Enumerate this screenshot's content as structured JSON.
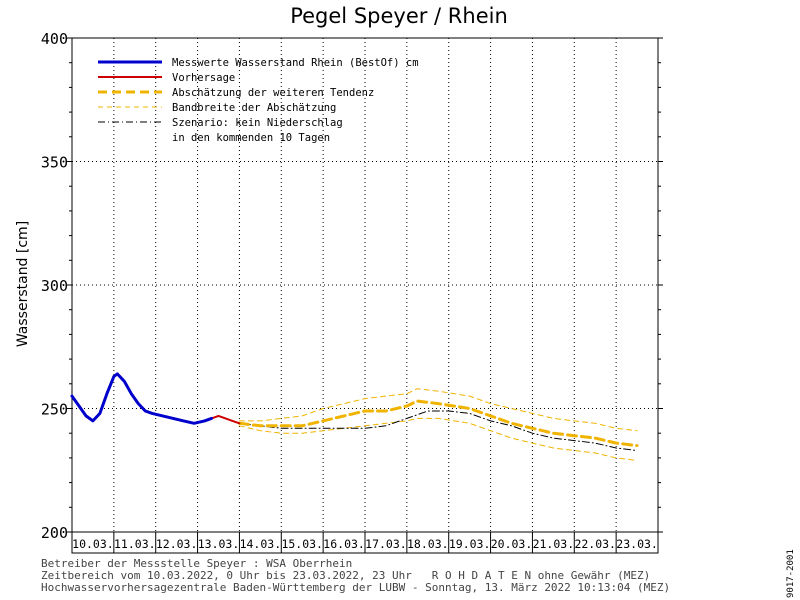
{
  "chart_data": {
    "type": "line",
    "title": "Pegel Speyer / Rhein",
    "ylabel": "Wasserstand [cm]",
    "ylim": [
      200,
      400
    ],
    "yticks": [
      200,
      250,
      300,
      350,
      400
    ],
    "xlim": [
      "2022-03-10T00:00",
      "2022-03-24T00:00"
    ],
    "xtick_labels": [
      "10.03.",
      "11.03.",
      "12.03.",
      "13.03.",
      "14.03.",
      "15.03.",
      "16.03.",
      "17.03.",
      "18.03.",
      "19.03.",
      "20.03.",
      "21.03.",
      "22.03.",
      "23.03."
    ],
    "grid": true,
    "legend_position": "top-left",
    "series": [
      {
        "key": "messwerte",
        "name": "Messwerte Wasserstand Rhein (BestOf)  cm",
        "color": "#0000cc",
        "style": "solid-thick",
        "points": [
          [
            "2022-03-10T00:00",
            255
          ],
          [
            "2022-03-10T04:00",
            251
          ],
          [
            "2022-03-10T08:00",
            247
          ],
          [
            "2022-03-10T12:00",
            245
          ],
          [
            "2022-03-10T16:00",
            248
          ],
          [
            "2022-03-10T20:00",
            256
          ],
          [
            "2022-03-11T00:00",
            263
          ],
          [
            "2022-03-11T02:00",
            264
          ],
          [
            "2022-03-11T06:00",
            261
          ],
          [
            "2022-03-11T10:00",
            256
          ],
          [
            "2022-03-11T14:00",
            252
          ],
          [
            "2022-03-11T18:00",
            249
          ],
          [
            "2022-03-11T22:00",
            248
          ],
          [
            "2022-03-12T04:00",
            247
          ],
          [
            "2022-03-12T10:00",
            246
          ],
          [
            "2022-03-12T16:00",
            245
          ],
          [
            "2022-03-12T22:00",
            244
          ],
          [
            "2022-03-13T04:00",
            245
          ],
          [
            "2022-03-13T08:00",
            246
          ]
        ]
      },
      {
        "key": "vorhersage",
        "name": "Vorhersage",
        "color": "#cc0000",
        "style": "solid",
        "points": [
          [
            "2022-03-13T08:00",
            246
          ],
          [
            "2022-03-13T12:00",
            247
          ],
          [
            "2022-03-13T16:00",
            246
          ],
          [
            "2022-03-13T20:00",
            245
          ],
          [
            "2022-03-14T00:00",
            244
          ]
        ]
      },
      {
        "key": "tendenz",
        "name": "Abschätzung der weiteren Tendenz",
        "color": "#f0b400",
        "style": "dashed-thick",
        "points": [
          [
            "2022-03-14T00:00",
            244
          ],
          [
            "2022-03-14T12:00",
            243
          ],
          [
            "2022-03-15T00:00",
            243
          ],
          [
            "2022-03-15T12:00",
            243
          ],
          [
            "2022-03-16T00:00",
            245
          ],
          [
            "2022-03-16T12:00",
            247
          ],
          [
            "2022-03-17T00:00",
            249
          ],
          [
            "2022-03-17T12:00",
            249
          ],
          [
            "2022-03-18T00:00",
            251
          ],
          [
            "2022-03-18T06:00",
            253
          ],
          [
            "2022-03-18T18:00",
            252
          ],
          [
            "2022-03-19T12:00",
            250
          ],
          [
            "2022-03-20T00:00",
            247
          ],
          [
            "2022-03-20T12:00",
            244
          ],
          [
            "2022-03-21T00:00",
            242
          ],
          [
            "2022-03-21T12:00",
            240
          ],
          [
            "2022-03-22T00:00",
            239
          ],
          [
            "2022-03-22T12:00",
            238
          ],
          [
            "2022-03-23T00:00",
            236
          ],
          [
            "2022-03-23T12:00",
            235
          ]
        ]
      },
      {
        "key": "band_upper",
        "name": "Bandbreite der Abschätzung",
        "color": "#f0b400",
        "style": "dashed-thin",
        "points": [
          [
            "2022-03-14T00:00",
            245
          ],
          [
            "2022-03-14T12:00",
            245
          ],
          [
            "2022-03-15T00:00",
            246
          ],
          [
            "2022-03-15T12:00",
            247
          ],
          [
            "2022-03-16T00:00",
            250
          ],
          [
            "2022-03-16T12:00",
            252
          ],
          [
            "2022-03-17T00:00",
            254
          ],
          [
            "2022-03-17T12:00",
            255
          ],
          [
            "2022-03-18T00:00",
            256
          ],
          [
            "2022-03-18T06:00",
            258
          ],
          [
            "2022-03-18T18:00",
            257
          ],
          [
            "2022-03-19T12:00",
            255
          ],
          [
            "2022-03-20T00:00",
            252
          ],
          [
            "2022-03-20T12:00",
            250
          ],
          [
            "2022-03-21T00:00",
            248
          ],
          [
            "2022-03-21T12:00",
            246
          ],
          [
            "2022-03-22T00:00",
            245
          ],
          [
            "2022-03-22T12:00",
            244
          ],
          [
            "2022-03-23T00:00",
            242
          ],
          [
            "2022-03-23T12:00",
            241
          ]
        ]
      },
      {
        "key": "band_lower",
        "name": "",
        "color": "#f0b400",
        "style": "dashed-thin",
        "points": [
          [
            "2022-03-14T00:00",
            243
          ],
          [
            "2022-03-14T12:00",
            241
          ],
          [
            "2022-03-15T00:00",
            240
          ],
          [
            "2022-03-15T12:00",
            240
          ],
          [
            "2022-03-16T00:00",
            241
          ],
          [
            "2022-03-16T12:00",
            242
          ],
          [
            "2022-03-17T00:00",
            243
          ],
          [
            "2022-03-17T12:00",
            244
          ],
          [
            "2022-03-18T00:00",
            245
          ],
          [
            "2022-03-18T06:00",
            246
          ],
          [
            "2022-03-18T18:00",
            246
          ],
          [
            "2022-03-19T12:00",
            244
          ],
          [
            "2022-03-20T00:00",
            241
          ],
          [
            "2022-03-20T12:00",
            238
          ],
          [
            "2022-03-21T00:00",
            236
          ],
          [
            "2022-03-21T12:00",
            234
          ],
          [
            "2022-03-22T00:00",
            233
          ],
          [
            "2022-03-22T12:00",
            232
          ],
          [
            "2022-03-23T00:00",
            230
          ],
          [
            "2022-03-23T12:00",
            229
          ]
        ]
      },
      {
        "key": "szenario",
        "name": "Szenario: kein Niederschlag",
        "name_line2": "in den kommenden 10 Tagen",
        "color": "#000000",
        "style": "dashdot",
        "points": [
          [
            "2022-03-14T00:00",
            244
          ],
          [
            "2022-03-15T00:00",
            242
          ],
          [
            "2022-03-16T00:00",
            242
          ],
          [
            "2022-03-17T00:00",
            242
          ],
          [
            "2022-03-17T12:00",
            243
          ],
          [
            "2022-03-18T00:00",
            246
          ],
          [
            "2022-03-18T12:00",
            249
          ],
          [
            "2022-03-19T00:00",
            249
          ],
          [
            "2022-03-19T12:00",
            248
          ],
          [
            "2022-03-20T00:00",
            245
          ],
          [
            "2022-03-20T12:00",
            243
          ],
          [
            "2022-03-21T00:00",
            240
          ],
          [
            "2022-03-21T12:00",
            238
          ],
          [
            "2022-03-22T00:00",
            237
          ],
          [
            "2022-03-22T12:00",
            236
          ],
          [
            "2022-03-23T00:00",
            234
          ],
          [
            "2022-03-23T12:00",
            233
          ]
        ]
      }
    ]
  },
  "footer": {
    "line1": "Betreiber der Messstelle Speyer : WSA Oberrhein",
    "line2": "Zeitbereich vom 10.03.2022, 0 Uhr bis 23.03.2022, 23 Uhr   R O H D A T E N ohne Gewähr (MEZ)",
    "line3": "Hochwasservorhersagezentrale Baden-Württemberg der LUBW - Sonntag, 13. März 2022 10:13:04 (MEZ)"
  },
  "side_id": "9017-2001"
}
